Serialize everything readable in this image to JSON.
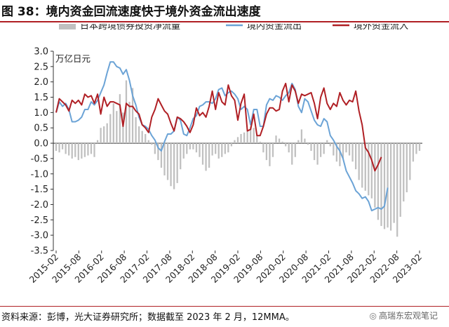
{
  "figure_title": "图 38：境内资金回流速度快于境外资金流出速度",
  "source_note": "资料来源：彭博，光大证券研究所；数据截至 2023 年 2 月，12MMA。",
  "watermark": "高瑞东宏观笔记",
  "colors": {
    "bar": "#c0c0c0",
    "outflow": "#6ba3d6",
    "inflow": "#b01f24",
    "rule": "#b01f24"
  },
  "chart_data": {
    "type": "bar+line",
    "unit_label": "万亿日元",
    "ylim": [
      -3.5,
      3.0
    ],
    "y_ticks": [
      "3.0",
      "2.5",
      "2.0",
      "1.5",
      "1.0",
      "0.5",
      "0.0",
      "-0.5",
      "-1.0",
      "-1.5",
      "-2.0",
      "-2.5",
      "-3.0",
      "-3.5"
    ],
    "x_tick_labels": [
      "2015-02",
      "2015-08",
      "2016-02",
      "2016-08",
      "2017-02",
      "2017-08",
      "2018-02",
      "2018-08",
      "2019-02",
      "2019-08",
      "2020-02",
      "2020-08",
      "2021-02",
      "2021-08",
      "2022-02",
      "2022-08",
      "2023-02"
    ],
    "x_start": "2015-02",
    "x_end": "2023-02",
    "legend": {
      "position": "top",
      "entries": [
        "日本跨境债券投资净流量",
        "境内资金流出",
        "境外资金流入"
      ]
    },
    "series": [
      {
        "name": "日本跨境债券投资净流量",
        "type": "bar",
        "values": [
          -0.25,
          -0.3,
          -0.2,
          -0.35,
          -0.4,
          -0.5,
          -0.45,
          -0.55,
          -0.5,
          -0.45,
          -0.4,
          -0.35,
          -0.45,
          0.1,
          0.5,
          0.55,
          0.65,
          0.95,
          1.3,
          1.05,
          1.6,
          1.0,
          2.05,
          1.35,
          1.8,
          0.85,
          0.55,
          0.4,
          0.3,
          0.1,
          -0.05,
          -0.35,
          -0.55,
          -0.8,
          -1.05,
          -1.2,
          -1.4,
          -1.5,
          -1.3,
          -0.85,
          -0.5,
          -0.35,
          -0.2,
          -0.2,
          -0.3,
          -0.45,
          -0.7,
          -0.9,
          -0.8,
          -0.4,
          -0.35,
          -0.5,
          -0.45,
          -0.35,
          -0.3,
          -0.1,
          0.1,
          0.2,
          0.3,
          0.35,
          0.45,
          0.55,
          0.5,
          0.25,
          0.05,
          -0.3,
          -0.55,
          -0.75,
          -0.45,
          0.25,
          0.15,
          0.05,
          -0.1,
          -0.3,
          -0.7,
          -0.45,
          0.1,
          0.45,
          0.15,
          -0.05,
          -0.25,
          -0.55,
          -0.7,
          -0.45,
          -0.35,
          0.1,
          -0.1,
          -0.4,
          -0.6,
          -0.75,
          -0.5,
          -0.3,
          -0.4,
          -0.6,
          -0.85,
          -1.2,
          -1.45,
          -1.55,
          -1.7,
          -1.8,
          -2.1,
          -2.5,
          -2.7,
          -2.8,
          -2.75,
          -2.85,
          -2.6,
          -3.05,
          -2.4,
          -1.9,
          -1.6,
          -1.2,
          -0.6,
          -0.35,
          -0.25
        ]
      },
      {
        "name": "境内资金流出",
        "type": "line",
        "values": [
          1.0,
          1.35,
          1.2,
          1.3,
          1.1,
          0.7,
          0.7,
          0.75,
          0.85,
          1.1,
          1.1,
          1.35,
          1.25,
          1.4,
          1.65,
          1.9,
          2.3,
          2.65,
          2.65,
          2.5,
          2.45,
          2.25,
          2.4,
          2.05,
          1.55,
          1.25,
          0.85,
          0.6,
          0.55,
          0.45,
          0.25,
          0.1,
          -0.15,
          -0.25,
          0.05,
          0.3,
          0.3,
          0.4,
          0.85,
          0.75,
          0.3,
          0.25,
          0.5,
          0.8,
          0.9,
          1.2,
          1.25,
          1.35,
          1.35,
          1.3,
          1.45,
          1.75,
          1.8,
          1.55,
          1.65,
          1.7,
          1.6,
          1.45,
          1.1,
          1.2,
          1.1,
          0.6,
          1.1,
          1.1,
          0.55,
          0.55,
          1.25,
          1.45,
          1.4,
          1.55,
          1.5,
          1.4,
          1.55,
          1.65,
          1.95,
          1.75,
          1.2,
          1.0,
          1.45,
          1.35,
          1.05,
          0.75,
          0.6,
          0.55,
          0.8,
          0.7,
          0.25,
          0.1,
          -0.1,
          -0.25,
          -0.5,
          -0.9,
          -1.1,
          -1.3,
          -1.55,
          -1.65,
          -1.8,
          -1.75,
          -1.9,
          -2.2,
          -2.15,
          -2.1,
          -2.15,
          -2.05,
          -1.45
        ]
      },
      {
        "name": "境外资金流入",
        "type": "line",
        "values": [
          1.0,
          1.45,
          1.35,
          1.25,
          1.05,
          1.4,
          1.3,
          1.4,
          1.25,
          1.6,
          1.5,
          1.55,
          1.3,
          1.6,
          0.95,
          1.5,
          1.2,
          1.35,
          1.35,
          1.3,
          1.25,
          0.55,
          1.3,
          1.2,
          1.2,
          1.05,
          0.95,
          0.6,
          0.5,
          0.35,
          0.85,
          1.1,
          1.45,
          1.25,
          1.05,
          0.95,
          0.65,
          0.4,
          0.85,
          0.8,
          0.7,
          0.55,
          0.35,
          0.6,
          1.15,
          0.9,
          1.0,
          0.85,
          1.2,
          1.7,
          1.1,
          1.65,
          1.35,
          1.25,
          1.9,
          1.55,
          1.4,
          0.75,
          1.3,
          1.6,
          0.4,
          0.45,
          0.95,
          0.25,
          0.25,
          0.55,
          0.95,
          1.15,
          1.15,
          1.05,
          1.1,
          1.7,
          1.95,
          1.35,
          1.9,
          1.7,
          1.3,
          1.6,
          1.55,
          1.6,
          1.65,
          1.3,
          0.8,
          1.5,
          1.8,
          1.3,
          1.1,
          1.3,
          1.2,
          1.65,
          1.4,
          1.25,
          1.4,
          1.35,
          1.7,
          1.05,
          0.6,
          -0.15,
          -0.3,
          -0.55,
          -0.9,
          -0.7,
          -0.45
        ]
      }
    ]
  }
}
